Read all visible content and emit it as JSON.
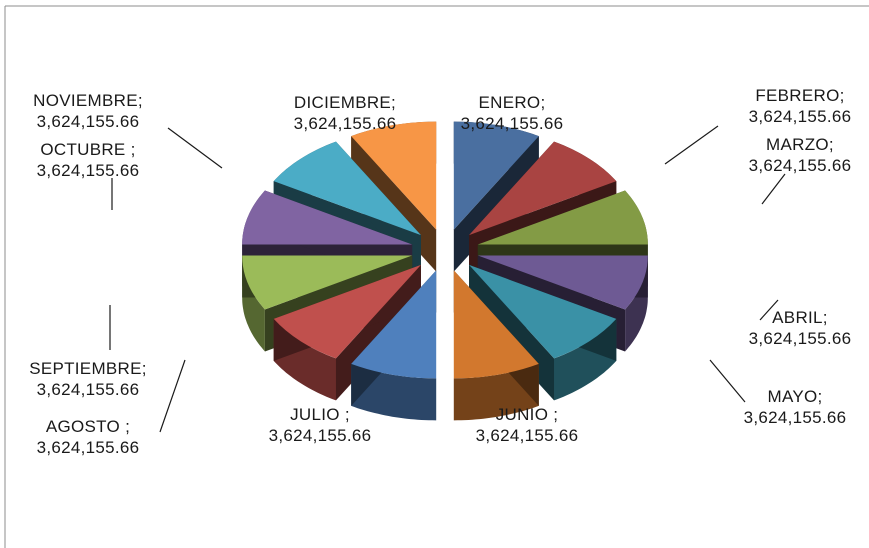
{
  "chart_data": {
    "type": "pie",
    "style": "3d-exploded",
    "slices": [
      {
        "name": "ENERO",
        "label_name": "ENERO;",
        "value": 3624155.66,
        "value_text": "3,624,155.66",
        "color": "#4a6fa0"
      },
      {
        "name": "FEBRERO",
        "label_name": "FEBRERO;",
        "value": 3624155.66,
        "value_text": "3,624,155.66",
        "color": "#a94442"
      },
      {
        "name": "MARZO",
        "label_name": "MARZO;",
        "value": 3624155.66,
        "value_text": "3,624,155.66",
        "color": "#839b45"
      },
      {
        "name": "ABRIL",
        "label_name": "ABRIL;",
        "value": 3624155.66,
        "value_text": "3,624,155.66",
        "color": "#6e5a94"
      },
      {
        "name": "MAYO",
        "label_name": "MAYO;",
        "value": 3624155.66,
        "value_text": "3,624,155.66",
        "color": "#3a91a6"
      },
      {
        "name": "JUNIO",
        "label_name": "JUNIO ;",
        "value": 3624155.66,
        "value_text": "3,624,155.66",
        "color": "#d2782e"
      },
      {
        "name": "JULIO",
        "label_name": "JULIO ;",
        "value": 3624155.66,
        "value_text": "3,624,155.66",
        "color": "#4f80bd"
      },
      {
        "name": "AGOSTO",
        "label_name": "AGOSTO ;",
        "value": 3624155.66,
        "value_text": "3,624,155.66",
        "color": "#c0504d"
      },
      {
        "name": "SEPTIEMBRE",
        "label_name": "SEPTIEMBRE;",
        "value": 3624155.66,
        "value_text": "3,624,155.66",
        "color": "#9bbb59"
      },
      {
        "name": "OCTUBRE",
        "label_name": "OCTUBRE ;",
        "value": 3624155.66,
        "value_text": "3,624,155.66",
        "color": "#8064a2"
      },
      {
        "name": "NOVIEMBRE",
        "label_name": "NOVIEMBRE;",
        "value": 3624155.66,
        "value_text": "3,624,155.66",
        "color": "#4bacc6"
      },
      {
        "name": "DICIEMBRE",
        "label_name": "DICIEMBRE;",
        "value": 3624155.66,
        "value_text": "3,624,155.66",
        "color": "#f79646"
      }
    ],
    "title": "",
    "legend": "none"
  }
}
